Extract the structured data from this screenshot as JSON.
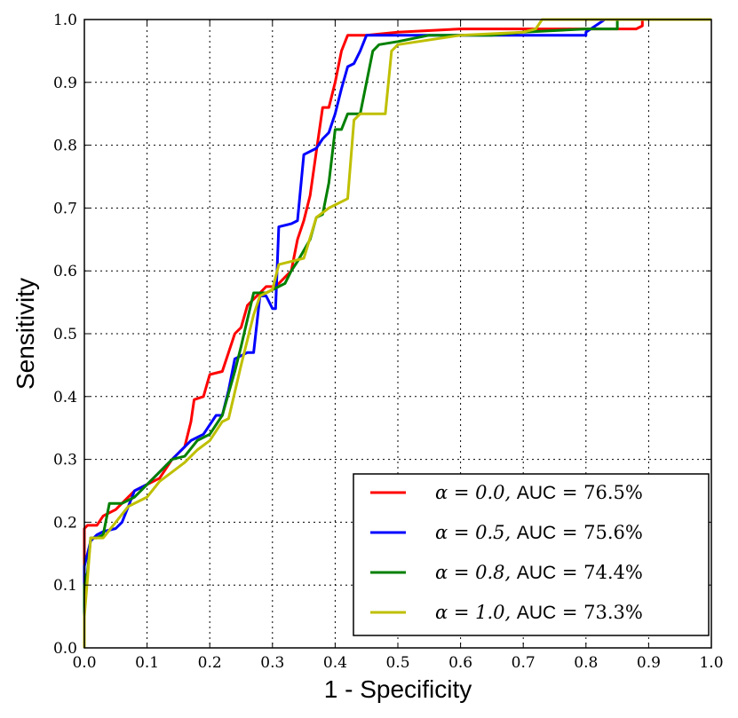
{
  "chart_data": {
    "type": "line",
    "title": "",
    "xlabel": "1 - Specificity",
    "ylabel": "Sensitivity",
    "xlim": [
      0.0,
      1.0
    ],
    "ylim": [
      0.0,
      1.0
    ],
    "xticks": [
      "0.0",
      "0.1",
      "0.2",
      "0.3",
      "0.4",
      "0.5",
      "0.6",
      "0.7",
      "0.8",
      "0.9",
      "1.0"
    ],
    "yticks": [
      "0.0",
      "0.1",
      "0.2",
      "0.3",
      "0.4",
      "0.5",
      "0.6",
      "0.7",
      "0.8",
      "0.9",
      "1.0"
    ],
    "grid": true,
    "legend_position": "bottom-right",
    "series": [
      {
        "name": "alpha = 0.0, AUC = 76.5%",
        "alpha_label": "α = 0.0, ",
        "auc_label": "AUC",
        "auc_value": " = 76.5%",
        "color": "#ff0000",
        "x": [
          0.0,
          0.0,
          0.005,
          0.02,
          0.03,
          0.05,
          0.07,
          0.08,
          0.1,
          0.12,
          0.14,
          0.16,
          0.17,
          0.175,
          0.19,
          0.2,
          0.22,
          0.24,
          0.25,
          0.26,
          0.27,
          0.28,
          0.29,
          0.3,
          0.31,
          0.32,
          0.33,
          0.34,
          0.35,
          0.36,
          0.37,
          0.38,
          0.39,
          0.4,
          0.41,
          0.42,
          0.425,
          0.45,
          0.5,
          0.6,
          0.7,
          0.8,
          0.88,
          0.89,
          0.89,
          1.0
        ],
        "y": [
          0.0,
          0.19,
          0.195,
          0.195,
          0.21,
          0.22,
          0.24,
          0.25,
          0.26,
          0.27,
          0.3,
          0.32,
          0.36,
          0.395,
          0.4,
          0.435,
          0.44,
          0.5,
          0.51,
          0.545,
          0.555,
          0.565,
          0.575,
          0.575,
          0.58,
          0.59,
          0.6,
          0.65,
          0.68,
          0.72,
          0.79,
          0.86,
          0.86,
          0.9,
          0.95,
          0.975,
          0.975,
          0.975,
          0.98,
          0.985,
          0.985,
          0.985,
          0.985,
          0.99,
          1.0,
          1.0
        ]
      },
      {
        "name": "alpha = 0.5, AUC = 75.6%",
        "alpha_label": "α = 0.5, ",
        "auc_label": "AUC",
        "auc_value": " = 75.6%",
        "color": "#0000ff",
        "x": [
          0.0,
          0.0,
          0.01,
          0.02,
          0.03,
          0.05,
          0.06,
          0.08,
          0.1,
          0.12,
          0.13,
          0.15,
          0.17,
          0.19,
          0.21,
          0.22,
          0.23,
          0.24,
          0.25,
          0.26,
          0.27,
          0.28,
          0.29,
          0.3,
          0.305,
          0.31,
          0.33,
          0.34,
          0.35,
          0.37,
          0.38,
          0.39,
          0.4,
          0.41,
          0.42,
          0.43,
          0.44,
          0.45,
          0.5,
          0.6,
          0.7,
          0.8,
          0.8,
          0.83,
          1.0
        ],
        "y": [
          0.0,
          0.13,
          0.17,
          0.18,
          0.185,
          0.19,
          0.2,
          0.25,
          0.26,
          0.28,
          0.29,
          0.31,
          0.33,
          0.34,
          0.37,
          0.37,
          0.41,
          0.46,
          0.465,
          0.47,
          0.47,
          0.56,
          0.56,
          0.54,
          0.54,
          0.67,
          0.675,
          0.68,
          0.785,
          0.795,
          0.81,
          0.82,
          0.85,
          0.89,
          0.925,
          0.93,
          0.95,
          0.975,
          0.975,
          0.975,
          0.975,
          0.975,
          0.98,
          1.0,
          1.0
        ]
      },
      {
        "name": "alpha = 0.8, AUC = 74.4%",
        "alpha_label": "α = 0.8, ",
        "auc_label": "AUC",
        "auc_value": " = 74.4%",
        "color": "#008000",
        "x": [
          0.0,
          0.0,
          0.005,
          0.01,
          0.02,
          0.03,
          0.04,
          0.06,
          0.08,
          0.1,
          0.12,
          0.14,
          0.16,
          0.18,
          0.2,
          0.22,
          0.24,
          0.25,
          0.27,
          0.29,
          0.31,
          0.32,
          0.33,
          0.34,
          0.36,
          0.37,
          0.38,
          0.39,
          0.4,
          0.41,
          0.42,
          0.43,
          0.44,
          0.45,
          0.46,
          0.47,
          0.5,
          0.55,
          0.6,
          0.65,
          0.7,
          0.8,
          0.85,
          0.85,
          1.0
        ],
        "y": [
          0.0,
          0.1,
          0.12,
          0.175,
          0.175,
          0.18,
          0.23,
          0.23,
          0.24,
          0.26,
          0.28,
          0.3,
          0.305,
          0.33,
          0.34,
          0.37,
          0.44,
          0.48,
          0.565,
          0.565,
          0.575,
          0.58,
          0.6,
          0.615,
          0.65,
          0.685,
          0.69,
          0.74,
          0.825,
          0.825,
          0.85,
          0.85,
          0.85,
          0.9,
          0.95,
          0.96,
          0.965,
          0.975,
          0.975,
          0.975,
          0.98,
          0.985,
          0.985,
          1.0,
          1.0
        ]
      },
      {
        "name": "alpha = 1.0, AUC = 73.3%",
        "alpha_label": "α = 1.0, ",
        "auc_label": "AUC",
        "auc_value": " = 73.3%",
        "color": "#bfbf00",
        "x": [
          0.0,
          0.0,
          0.005,
          0.01,
          0.02,
          0.03,
          0.05,
          0.07,
          0.09,
          0.1,
          0.12,
          0.14,
          0.16,
          0.18,
          0.2,
          0.22,
          0.23,
          0.25,
          0.27,
          0.28,
          0.3,
          0.31,
          0.33,
          0.35,
          0.37,
          0.39,
          0.41,
          0.42,
          0.43,
          0.44,
          0.46,
          0.48,
          0.49,
          0.5,
          0.6,
          0.7,
          0.72,
          0.73,
          1.0
        ],
        "y": [
          0.0,
          0.05,
          0.11,
          0.175,
          0.175,
          0.175,
          0.2,
          0.225,
          0.235,
          0.24,
          0.265,
          0.28,
          0.295,
          0.315,
          0.33,
          0.36,
          0.365,
          0.45,
          0.53,
          0.56,
          0.57,
          0.61,
          0.615,
          0.62,
          0.685,
          0.7,
          0.71,
          0.715,
          0.84,
          0.85,
          0.85,
          0.85,
          0.95,
          0.96,
          0.975,
          0.98,
          0.985,
          1.0,
          1.0
        ]
      }
    ]
  }
}
